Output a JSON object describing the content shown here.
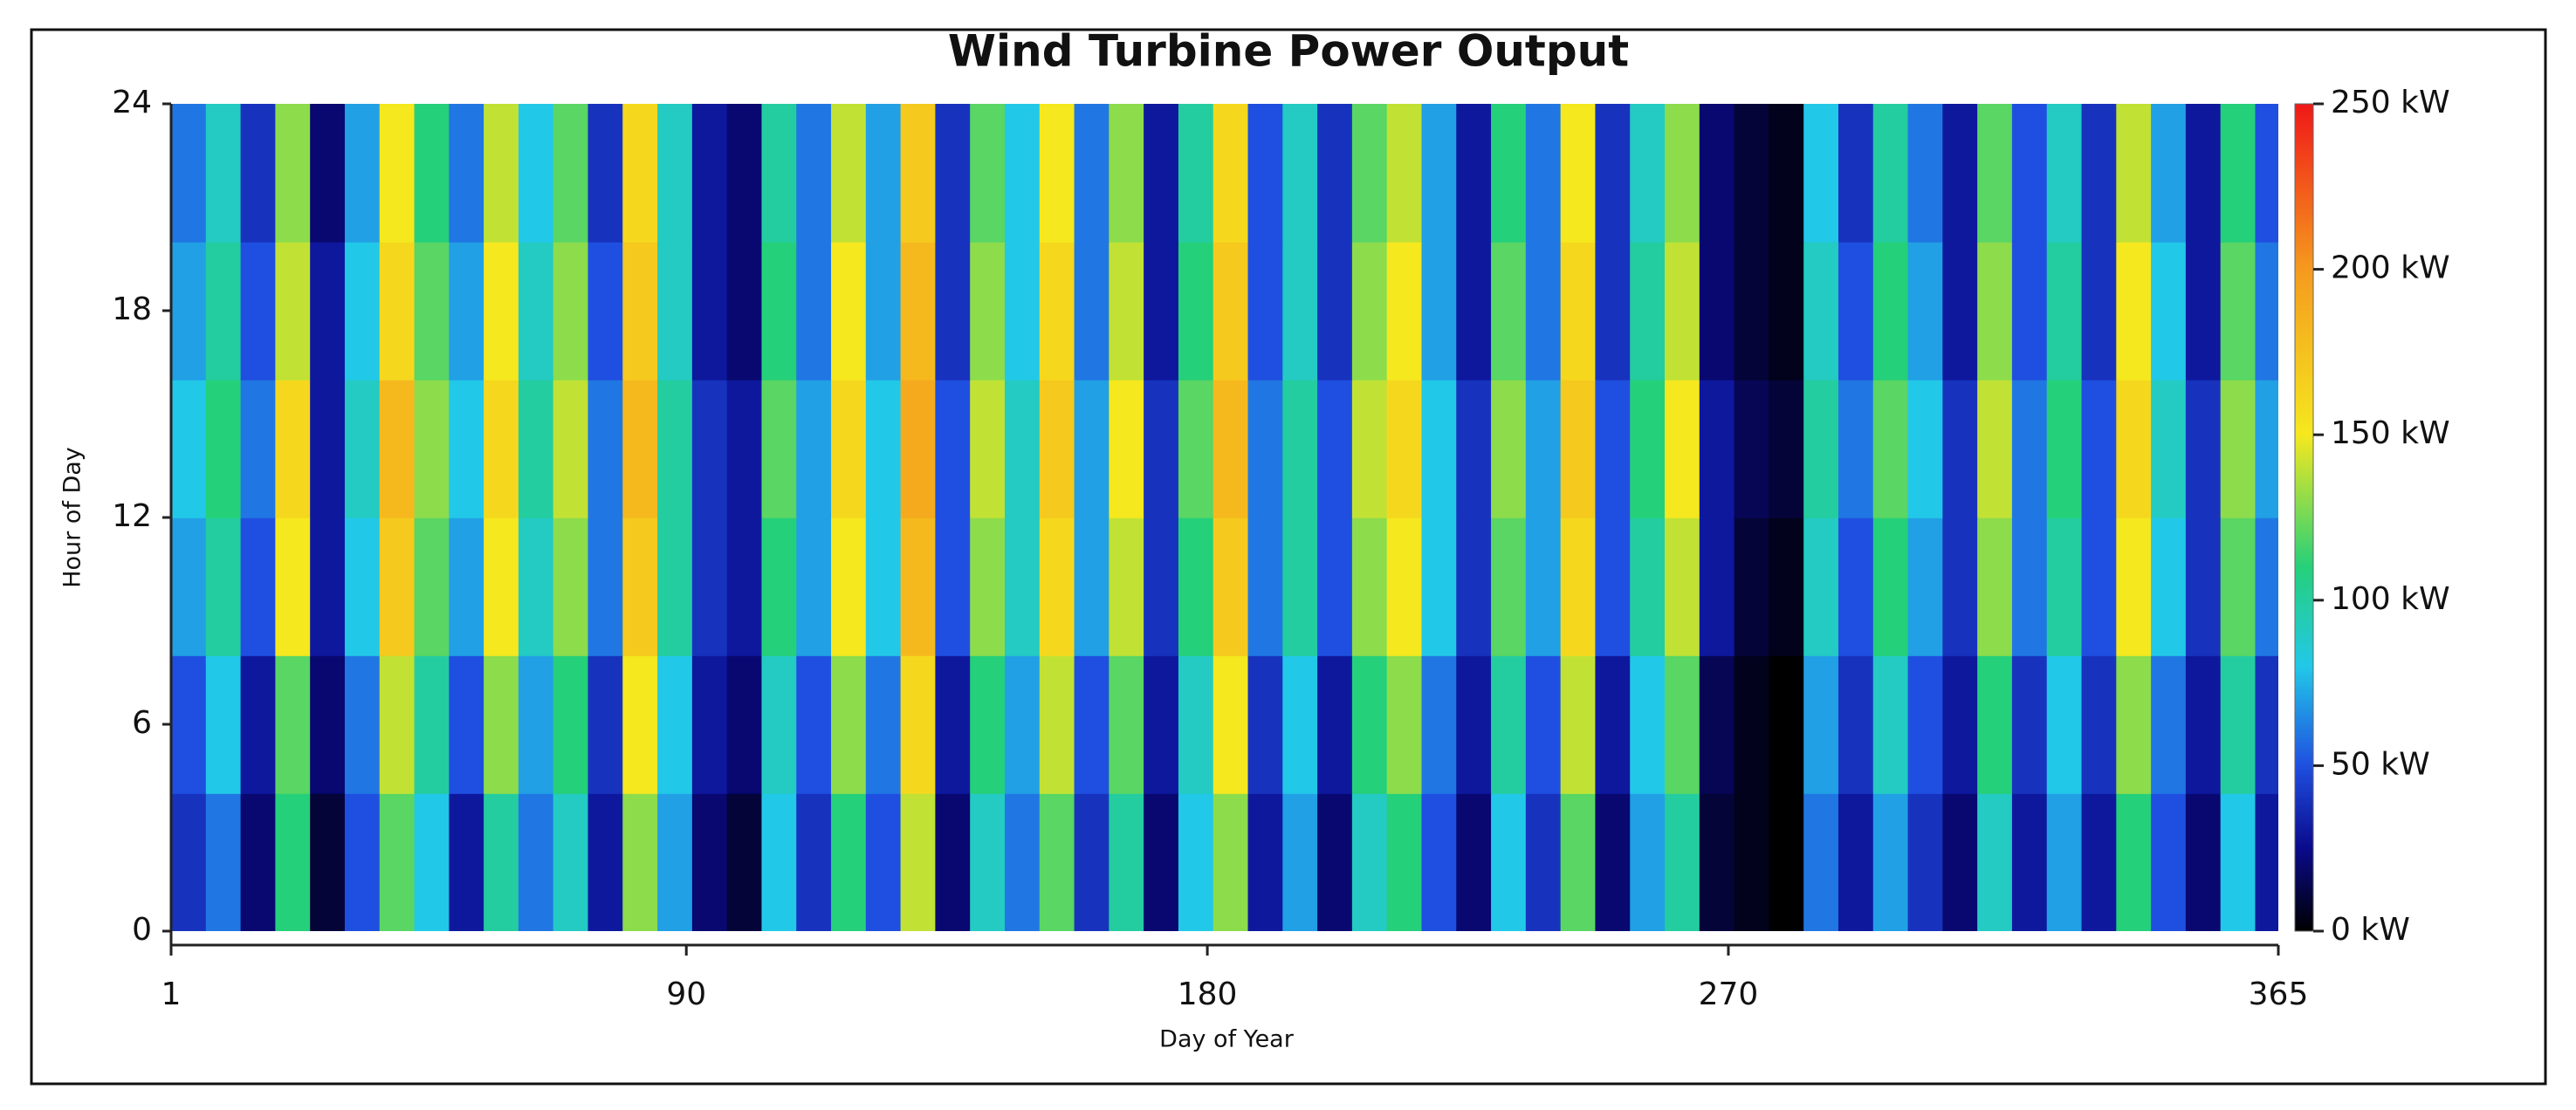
{
  "chart_data": {
    "type": "heatmap",
    "title": "Wind Turbine Power Output",
    "x_label": "Day of Year",
    "y_label": "Hour of Day",
    "x": [
      1,
      7,
      13,
      19,
      25,
      31,
      37,
      43,
      49,
      55,
      61,
      67,
      73,
      79,
      85,
      91,
      97,
      103,
      109,
      115,
      121,
      127,
      133,
      139,
      145,
      151,
      157,
      163,
      169,
      175,
      181,
      187,
      193,
      199,
      205,
      211,
      217,
      223,
      229,
      235,
      241,
      247,
      253,
      259,
      265,
      271,
      277,
      283,
      289,
      295,
      301,
      307,
      313,
      319,
      325,
      331,
      337,
      343,
      349,
      355,
      361
    ],
    "y": [
      0,
      4,
      8,
      12,
      16,
      20
    ],
    "z": [
      [
        40,
        60,
        20,
        110,
        10,
        50,
        120,
        80,
        30,
        100,
        60,
        90,
        30,
        130,
        70,
        20,
        10,
        80,
        40,
        110,
        50,
        140,
        20,
        90,
        60,
        120,
        40,
        100,
        20,
        80,
        130,
        30,
        70,
        20,
        90,
        110,
        50,
        20,
        80,
        40,
        120,
        20,
        70,
        100,
        10,
        5,
        0,
        60,
        30,
        70,
        40,
        20,
        90,
        30,
        70,
        30,
        110,
        50,
        20,
        80,
        30
      ],
      [
        50,
        80,
        30,
        120,
        20,
        60,
        140,
        100,
        50,
        130,
        70,
        110,
        40,
        150,
        80,
        30,
        20,
        90,
        50,
        130,
        60,
        160,
        30,
        110,
        70,
        140,
        50,
        120,
        30,
        90,
        150,
        40,
        80,
        30,
        110,
        130,
        60,
        30,
        100,
        50,
        140,
        30,
        80,
        120,
        15,
        5,
        0,
        70,
        40,
        90,
        50,
        30,
        110,
        40,
        80,
        40,
        130,
        60,
        30,
        100,
        40
      ],
      [
        70,
        100,
        50,
        150,
        30,
        80,
        170,
        120,
        70,
        150,
        90,
        130,
        60,
        170,
        100,
        40,
        30,
        110,
        70,
        150,
        80,
        180,
        50,
        130,
        90,
        160,
        70,
        140,
        40,
        110,
        170,
        60,
        100,
        50,
        130,
        150,
        80,
        40,
        120,
        70,
        160,
        50,
        100,
        140,
        30,
        10,
        5,
        90,
        50,
        110,
        70,
        40,
        130,
        60,
        100,
        50,
        150,
        80,
        40,
        120,
        60
      ],
      [
        80,
        110,
        60,
        160,
        30,
        90,
        180,
        130,
        80,
        160,
        100,
        140,
        60,
        180,
        100,
        40,
        30,
        120,
        70,
        160,
        80,
        190,
        50,
        140,
        90,
        170,
        70,
        150,
        40,
        120,
        180,
        60,
        100,
        50,
        140,
        160,
        80,
        40,
        130,
        70,
        170,
        50,
        110,
        150,
        30,
        15,
        10,
        100,
        60,
        120,
        80,
        40,
        140,
        60,
        110,
        50,
        160,
        90,
        40,
        130,
        70
      ],
      [
        70,
        100,
        50,
        140,
        30,
        80,
        160,
        120,
        70,
        150,
        90,
        130,
        50,
        170,
        90,
        30,
        20,
        110,
        60,
        150,
        70,
        180,
        40,
        130,
        80,
        160,
        60,
        140,
        30,
        110,
        170,
        50,
        90,
        40,
        130,
        150,
        70,
        30,
        120,
        60,
        160,
        40,
        100,
        140,
        20,
        10,
        5,
        90,
        50,
        110,
        70,
        30,
        130,
        50,
        100,
        40,
        150,
        80,
        30,
        120,
        60
      ],
      [
        60,
        90,
        40,
        130,
        20,
        70,
        150,
        110,
        60,
        140,
        80,
        120,
        40,
        160,
        90,
        30,
        20,
        100,
        60,
        140,
        70,
        170,
        40,
        120,
        80,
        150,
        60,
        130,
        30,
        100,
        160,
        50,
        90,
        40,
        120,
        140,
        70,
        30,
        110,
        60,
        150,
        40,
        90,
        130,
        20,
        10,
        5,
        80,
        40,
        100,
        60,
        30,
        120,
        50,
        90,
        40,
        140,
        70,
        30,
        110,
        50
      ]
    ],
    "xlim": [
      1,
      365
    ],
    "xticks": [
      1,
      90,
      180,
      270,
      365
    ],
    "ylim": [
      0,
      24
    ],
    "yticks": [
      0,
      6,
      12,
      18,
      24
    ],
    "zlim": [
      0,
      250
    ],
    "zticks": [
      {
        "value": 0,
        "label": "0 kW"
      },
      {
        "value": 50,
        "label": "50 kW"
      },
      {
        "value": 100,
        "label": "100 kW"
      },
      {
        "value": 150,
        "label": "150 kW"
      },
      {
        "value": 200,
        "label": "200 kW"
      },
      {
        "value": 250,
        "label": "250 kW"
      }
    ],
    "colorscale": [
      [
        0,
        "#000000"
      ],
      [
        25,
        "#0a0a8c"
      ],
      [
        50,
        "#1f4fe0"
      ],
      [
        80,
        "#22c8e8"
      ],
      [
        110,
        "#25d07a"
      ],
      [
        150,
        "#f5e81e"
      ],
      [
        200,
        "#f59a1e"
      ],
      [
        250,
        "#f01818"
      ]
    ]
  }
}
